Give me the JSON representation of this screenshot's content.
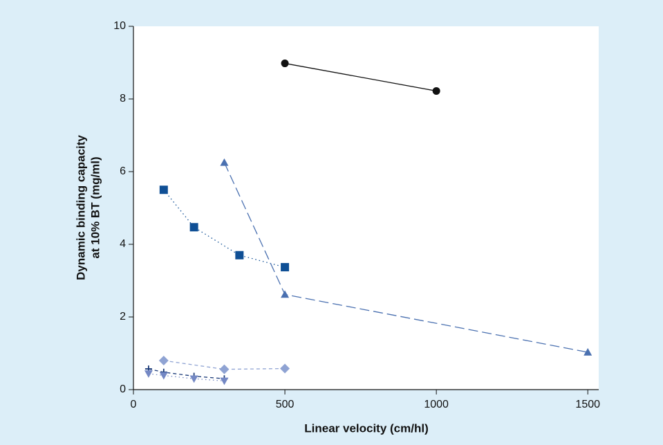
{
  "chart_data": {
    "type": "line",
    "xlabel": "Linear velocity (cm/hl)",
    "ylabel": [
      "Dynamic binding capacity",
      "at 10% BT (mg/ml)"
    ],
    "xlim": [
      0,
      1536
    ],
    "ylim": [
      0,
      10
    ],
    "xticks": [
      0,
      500,
      1000,
      1500
    ],
    "yticks": [
      0,
      2,
      4,
      6,
      8,
      10
    ],
    "grid": false,
    "series": [
      {
        "color": "#111111",
        "marker": "circle",
        "line_style": "solid",
        "x": [
          500,
          1000
        ],
        "values": [
          8.98,
          8.22
        ]
      },
      {
        "color": "#0f4f95",
        "marker": "square",
        "line_style": "dotted",
        "x": [
          100,
          200,
          350,
          500
        ],
        "values": [
          5.5,
          4.47,
          3.7,
          3.37
        ]
      },
      {
        "color": "#4a70b0",
        "marker": "triangle-up",
        "line_style": "long-dash",
        "x": [
          300,
          500,
          1500
        ],
        "values": [
          6.25,
          2.62,
          1.03
        ]
      },
      {
        "color": "#8fa3d3",
        "marker": "diamond",
        "line_style": "dashed",
        "x": [
          100,
          300,
          500
        ],
        "values": [
          0.8,
          0.56,
          0.58
        ]
      },
      {
        "color": "#1a3a78",
        "marker": "plus",
        "line_style": "dashed",
        "x": [
          50,
          100,
          200,
          300
        ],
        "values": [
          0.57,
          0.48,
          0.37,
          0.3
        ]
      },
      {
        "color": "#7488c4",
        "marker": "triangle-down",
        "line_style": "dotted",
        "x": [
          50,
          100,
          200,
          300
        ],
        "values": [
          0.44,
          0.39,
          0.3,
          0.24
        ]
      }
    ]
  }
}
